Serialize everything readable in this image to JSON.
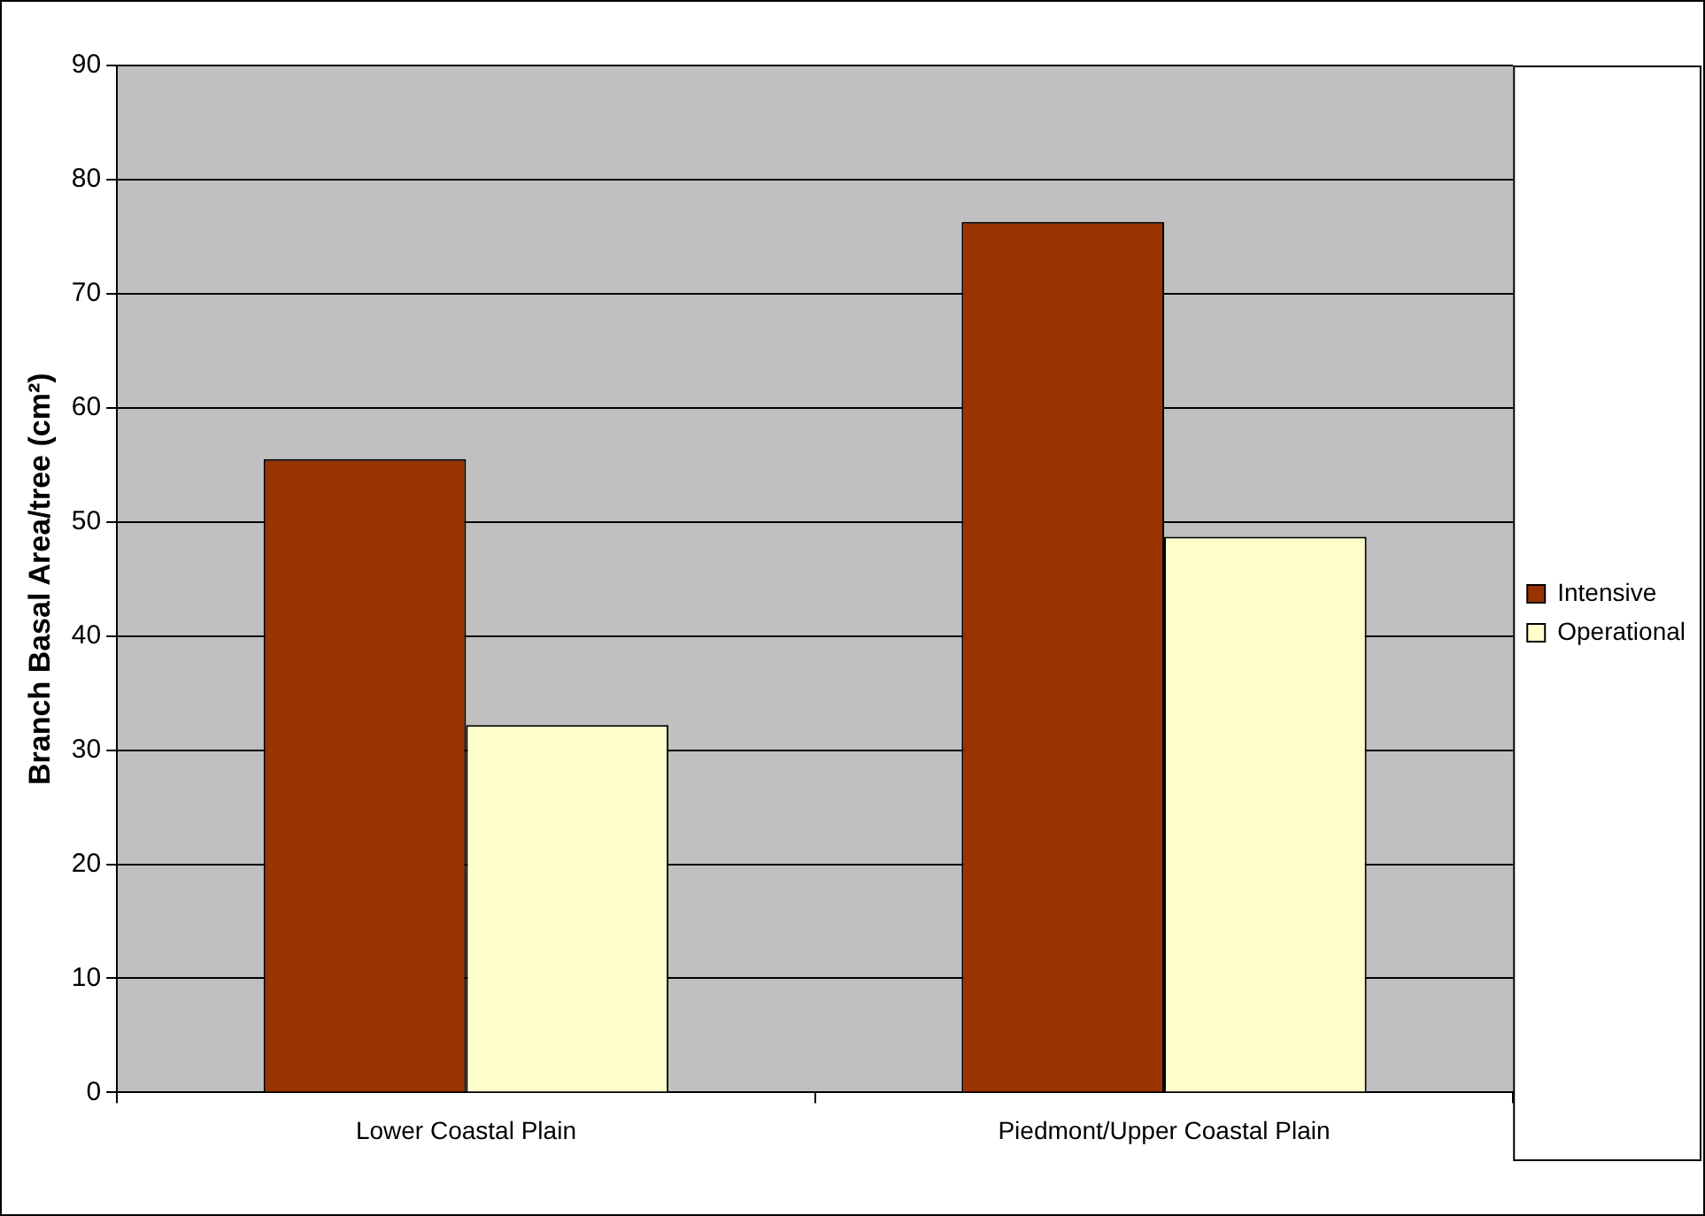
{
  "chart_data": {
    "type": "bar",
    "ylabel": "Branch Basal Area/tree (cm²)",
    "categories": [
      "Lower Coastal Plain",
      "Piedmont/Upper Coastal Plain"
    ],
    "series": [
      {
        "name": "Intensive",
        "color": "#993300",
        "values": [
          55.5,
          76.3
        ]
      },
      {
        "name": "Operational",
        "color": "#ffffcc",
        "values": [
          32.2,
          48.7
        ]
      }
    ],
    "ylim": [
      0,
      90
    ],
    "yticks": [
      0,
      10,
      20,
      30,
      40,
      50,
      60,
      70,
      80,
      90
    ],
    "grid": "y",
    "legend": "right"
  }
}
